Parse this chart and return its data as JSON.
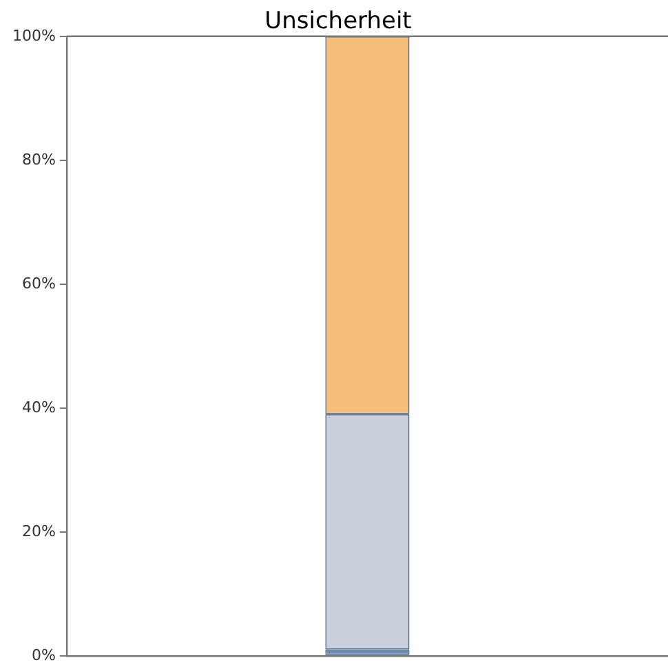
{
  "chart_data": {
    "type": "bar",
    "title": "Unsicherheit",
    "categories": [
      null
    ],
    "stacked": true,
    "series": [
      {
        "color": "#6a8db5",
        "values": [
          1
        ]
      },
      {
        "color": "#cad0db",
        "values": [
          38
        ]
      },
      {
        "color": "#f7bd7a",
        "values": [
          61
        ]
      }
    ],
    "ylim": [
      0,
      100
    ],
    "yticks": [
      {
        "value": 0,
        "label": "0%"
      },
      {
        "value": 20,
        "label": "20%"
      },
      {
        "value": 40,
        "label": "40%"
      },
      {
        "value": 60,
        "label": "60%"
      },
      {
        "value": 80,
        "label": "80%"
      },
      {
        "value": 100,
        "label": "100%"
      }
    ],
    "grid": false,
    "legend": false
  }
}
